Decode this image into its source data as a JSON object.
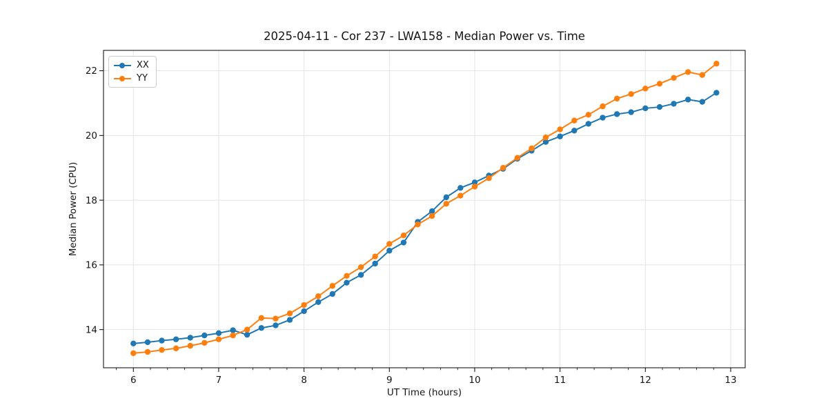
{
  "figure": {
    "background": "#ffffff"
  },
  "style": {
    "grid_color": "#e4e4e4",
    "spine_color": "#000000",
    "tick_color": "#000000",
    "text_color": "#151515"
  },
  "chart_data": {
    "type": "line",
    "title": "2025-04-11 - Cor 237 - LWA158 - Median Power vs. Time",
    "xlabel": "UT Time (hours)",
    "ylabel": "Median Power (CPU)",
    "xlim": [
      5.65,
      13.17
    ],
    "ylim": [
      12.82,
      22.63
    ],
    "x_major_ticks": [
      6,
      7,
      8,
      9,
      10,
      11,
      12,
      13
    ],
    "x_minor_tick_step": 0.2,
    "y_major_ticks": [
      14,
      16,
      18,
      20,
      22
    ],
    "grid": "major-only",
    "legend_position": "upper-left",
    "x": [
      6.0,
      6.167,
      6.333,
      6.5,
      6.667,
      6.833,
      7.0,
      7.167,
      7.333,
      7.5,
      7.667,
      7.833,
      8.0,
      8.167,
      8.333,
      8.5,
      8.667,
      8.833,
      9.0,
      9.167,
      9.333,
      9.5,
      9.667,
      9.833,
      10.0,
      10.167,
      10.333,
      10.5,
      10.667,
      10.833,
      11.0,
      11.167,
      11.333,
      11.5,
      11.667,
      11.833,
      12.0,
      12.167,
      12.333,
      12.5,
      12.667,
      12.833
    ],
    "series": [
      {
        "name": "XX",
        "color": "#1f77b4",
        "marker": "circle",
        "values": [
          13.57,
          13.61,
          13.66,
          13.7,
          13.75,
          13.82,
          13.89,
          13.98,
          13.84,
          14.05,
          14.13,
          14.3,
          14.57,
          14.85,
          15.1,
          15.45,
          15.69,
          16.04,
          16.44,
          16.69,
          17.33,
          17.66,
          18.09,
          18.38,
          18.55,
          18.76,
          18.97,
          19.28,
          19.53,
          19.8,
          19.97,
          20.15,
          20.36,
          20.55,
          20.66,
          20.72,
          20.84,
          20.88,
          20.98,
          21.11,
          21.04,
          21.32
        ]
      },
      {
        "name": "YY",
        "color": "#ff7f0e",
        "marker": "circle",
        "values": [
          13.27,
          13.31,
          13.37,
          13.42,
          13.5,
          13.59,
          13.7,
          13.82,
          14.0,
          14.36,
          14.34,
          14.5,
          14.76,
          15.03,
          15.35,
          15.66,
          15.93,
          16.26,
          16.65,
          16.91,
          17.25,
          17.51,
          17.89,
          18.14,
          18.42,
          18.68,
          19.0,
          19.31,
          19.6,
          19.94,
          20.19,
          20.46,
          20.64,
          20.9,
          21.14,
          21.28,
          21.45,
          21.6,
          21.78,
          21.96,
          21.87,
          22.22
        ]
      }
    ]
  }
}
